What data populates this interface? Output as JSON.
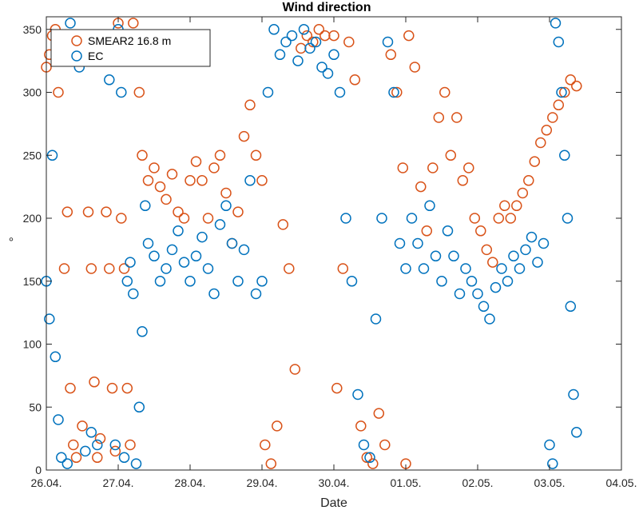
{
  "chart_data": {
    "type": "scatter",
    "title": "Wind direction",
    "xlabel": "Date",
    "ylabel": "°",
    "xlim": [
      "26.04.",
      "04.05."
    ],
    "ylim": [
      0,
      360
    ],
    "x_ticks": [
      "26.04.",
      "27.04.",
      "28.04.",
      "29.04.",
      "30.04.",
      "01.05.",
      "02.05.",
      "03.05.",
      "04.05."
    ],
    "y_ticks": [
      0,
      50,
      100,
      150,
      200,
      250,
      300,
      350
    ],
    "grid": false,
    "legend_location": "top-left",
    "marker": "open-circle",
    "series": [
      {
        "name": "SMEAR2 16.8 m",
        "color": "#D95319",
        "points": [
          [
            "26.04. 00:00",
            320
          ],
          [
            "26.04. 01:00",
            330
          ],
          [
            "26.04. 02:00",
            345
          ],
          [
            "26.04. 03:00",
            350
          ],
          [
            "26.04. 04:00",
            300
          ],
          [
            "26.04. 06:00",
            160
          ],
          [
            "26.04. 07:00",
            205
          ],
          [
            "26.04. 08:00",
            65
          ],
          [
            "26.04. 09:00",
            20
          ],
          [
            "26.04. 10:00",
            10
          ],
          [
            "26.04. 12:00",
            35
          ],
          [
            "26.04. 14:00",
            205
          ],
          [
            "26.04. 15:00",
            160
          ],
          [
            "26.04. 16:00",
            70
          ],
          [
            "26.04. 17:00",
            10
          ],
          [
            "26.04. 18:00",
            25
          ],
          [
            "26.04. 20:00",
            205
          ],
          [
            "26.04. 21:00",
            160
          ],
          [
            "26.04. 22:00",
            65
          ],
          [
            "26.04. 23:00",
            15
          ],
          [
            "27.04. 00:00",
            355
          ],
          [
            "27.04. 01:00",
            200
          ],
          [
            "27.04. 02:00",
            160
          ],
          [
            "27.04. 03:00",
            65
          ],
          [
            "27.04. 04:00",
            20
          ],
          [
            "27.04. 05:00",
            355
          ],
          [
            "27.04. 06:00",
            340
          ],
          [
            "27.04. 07:00",
            300
          ],
          [
            "27.04. 08:00",
            250
          ],
          [
            "27.04. 10:00",
            230
          ],
          [
            "27.04. 12:00",
            240
          ],
          [
            "27.04. 14:00",
            225
          ],
          [
            "27.04. 16:00",
            215
          ],
          [
            "27.04. 18:00",
            235
          ],
          [
            "27.04. 20:00",
            205
          ],
          [
            "27.04. 22:00",
            200
          ],
          [
            "28.04. 00:00",
            230
          ],
          [
            "28.04. 02:00",
            245
          ],
          [
            "28.04. 04:00",
            230
          ],
          [
            "28.04. 06:00",
            200
          ],
          [
            "28.04. 08:00",
            240
          ],
          [
            "28.04. 10:00",
            250
          ],
          [
            "28.04. 12:00",
            220
          ],
          [
            "28.04. 14:00",
            180
          ],
          [
            "28.04. 16:00",
            205
          ],
          [
            "28.04. 18:00",
            265
          ],
          [
            "28.04. 20:00",
            290
          ],
          [
            "28.04. 22:00",
            250
          ],
          [
            "29.04. 00:00",
            230
          ],
          [
            "29.04. 01:00",
            20
          ],
          [
            "29.04. 03:00",
            5
          ],
          [
            "29.04. 05:00",
            35
          ],
          [
            "29.04. 07:00",
            195
          ],
          [
            "29.04. 09:00",
            160
          ],
          [
            "29.04. 11:00",
            80
          ],
          [
            "29.04. 13:00",
            335
          ],
          [
            "29.04. 15:00",
            345
          ],
          [
            "29.04. 17:00",
            340
          ],
          [
            "29.04. 19:00",
            350
          ],
          [
            "29.04. 21:00",
            345
          ],
          [
            "30.04. 00:00",
            345
          ],
          [
            "30.04. 01:00",
            65
          ],
          [
            "30.04. 03:00",
            160
          ],
          [
            "30.04. 05:00",
            340
          ],
          [
            "30.04. 07:00",
            310
          ],
          [
            "30.04. 09:00",
            35
          ],
          [
            "30.04. 11:00",
            10
          ],
          [
            "30.04. 13:00",
            5
          ],
          [
            "30.04. 15:00",
            45
          ],
          [
            "30.04. 17:00",
            20
          ],
          [
            "30.04. 19:00",
            330
          ],
          [
            "30.04. 21:00",
            300
          ],
          [
            "30.04. 23:00",
            240
          ],
          [
            "01.05. 00:00",
            5
          ],
          [
            "01.05. 01:00",
            345
          ],
          [
            "01.05. 03:00",
            320
          ],
          [
            "01.05. 05:00",
            225
          ],
          [
            "01.05. 07:00",
            190
          ],
          [
            "01.05. 09:00",
            240
          ],
          [
            "01.05. 11:00",
            280
          ],
          [
            "01.05. 13:00",
            300
          ],
          [
            "01.05. 15:00",
            250
          ],
          [
            "01.05. 17:00",
            280
          ],
          [
            "01.05. 19:00",
            230
          ],
          [
            "01.05. 21:00",
            240
          ],
          [
            "01.05. 23:00",
            200
          ],
          [
            "02.05. 01:00",
            190
          ],
          [
            "02.05. 03:00",
            175
          ],
          [
            "02.05. 05:00",
            165
          ],
          [
            "02.05. 07:00",
            200
          ],
          [
            "02.05. 09:00",
            210
          ],
          [
            "02.05. 11:00",
            200
          ],
          [
            "02.05. 13:00",
            210
          ],
          [
            "02.05. 15:00",
            220
          ],
          [
            "02.05. 17:00",
            230
          ],
          [
            "02.05. 19:00",
            245
          ],
          [
            "02.05. 21:00",
            260
          ],
          [
            "02.05. 23:00",
            270
          ],
          [
            "03.05. 01:00",
            280
          ],
          [
            "03.05. 03:00",
            290
          ],
          [
            "03.05. 05:00",
            300
          ],
          [
            "03.05. 07:00",
            310
          ],
          [
            "03.05. 09:00",
            305
          ]
        ]
      },
      {
        "name": "EC",
        "color": "#0072BD",
        "points": [
          [
            "26.04. 00:00",
            150
          ],
          [
            "26.04. 01:00",
            120
          ],
          [
            "26.04. 02:00",
            250
          ],
          [
            "26.04. 03:00",
            90
          ],
          [
            "26.04. 04:00",
            40
          ],
          [
            "26.04. 05:00",
            10
          ],
          [
            "26.04. 07:00",
            5
          ],
          [
            "26.04. 08:00",
            355
          ],
          [
            "26.04. 09:00",
            340
          ],
          [
            "26.04. 11:00",
            320
          ],
          [
            "26.04. 13:00",
            15
          ],
          [
            "26.04. 15:00",
            30
          ],
          [
            "26.04. 17:00",
            20
          ],
          [
            "26.04. 19:00",
            330
          ],
          [
            "26.04. 21:00",
            310
          ],
          [
            "26.04. 23:00",
            20
          ],
          [
            "27.04. 00:00",
            350
          ],
          [
            "27.04. 01:00",
            300
          ],
          [
            "27.04. 02:00",
            10
          ],
          [
            "27.04. 03:00",
            150
          ],
          [
            "27.04. 04:00",
            165
          ],
          [
            "27.04. 05:00",
            140
          ],
          [
            "27.04. 06:00",
            5
          ],
          [
            "27.04. 07:00",
            50
          ],
          [
            "27.04. 08:00",
            110
          ],
          [
            "27.04. 09:00",
            210
          ],
          [
            "27.04. 10:00",
            180
          ],
          [
            "27.04. 12:00",
            170
          ],
          [
            "27.04. 14:00",
            150
          ],
          [
            "27.04. 16:00",
            160
          ],
          [
            "27.04. 18:00",
            175
          ],
          [
            "27.04. 20:00",
            190
          ],
          [
            "27.04. 22:00",
            165
          ],
          [
            "28.04. 00:00",
            150
          ],
          [
            "28.04. 02:00",
            170
          ],
          [
            "28.04. 04:00",
            185
          ],
          [
            "28.04. 06:00",
            160
          ],
          [
            "28.04. 08:00",
            140
          ],
          [
            "28.04. 10:00",
            195
          ],
          [
            "28.04. 12:00",
            210
          ],
          [
            "28.04. 14:00",
            180
          ],
          [
            "28.04. 16:00",
            150
          ],
          [
            "28.04. 18:00",
            175
          ],
          [
            "28.04. 20:00",
            230
          ],
          [
            "28.04. 22:00",
            140
          ],
          [
            "29.04. 00:00",
            150
          ],
          [
            "29.04. 02:00",
            300
          ],
          [
            "29.04. 04:00",
            350
          ],
          [
            "29.04. 06:00",
            330
          ],
          [
            "29.04. 08:00",
            340
          ],
          [
            "29.04. 10:00",
            345
          ],
          [
            "29.04. 12:00",
            325
          ],
          [
            "29.04. 14:00",
            350
          ],
          [
            "29.04. 16:00",
            335
          ],
          [
            "29.04. 18:00",
            340
          ],
          [
            "29.04. 20:00",
            320
          ],
          [
            "29.04. 22:00",
            315
          ],
          [
            "30.04. 00:00",
            330
          ],
          [
            "30.04. 02:00",
            300
          ],
          [
            "30.04. 04:00",
            200
          ],
          [
            "30.04. 06:00",
            150
          ],
          [
            "30.04. 08:00",
            60
          ],
          [
            "30.04. 10:00",
            20
          ],
          [
            "30.04. 12:00",
            10
          ],
          [
            "30.04. 14:00",
            120
          ],
          [
            "30.04. 16:00",
            200
          ],
          [
            "30.04. 18:00",
            340
          ],
          [
            "30.04. 20:00",
            300
          ],
          [
            "30.04. 22:00",
            180
          ],
          [
            "01.05. 00:00",
            160
          ],
          [
            "01.05. 02:00",
            200
          ],
          [
            "01.05. 04:00",
            180
          ],
          [
            "01.05. 06:00",
            160
          ],
          [
            "01.05. 08:00",
            210
          ],
          [
            "01.05. 10:00",
            170
          ],
          [
            "01.05. 12:00",
            150
          ],
          [
            "01.05. 14:00",
            190
          ],
          [
            "01.05. 16:00",
            170
          ],
          [
            "01.05. 18:00",
            140
          ],
          [
            "01.05. 20:00",
            160
          ],
          [
            "01.05. 22:00",
            150
          ],
          [
            "02.05. 00:00",
            140
          ],
          [
            "02.05. 02:00",
            130
          ],
          [
            "02.05. 04:00",
            120
          ],
          [
            "02.05. 06:00",
            145
          ],
          [
            "02.05. 08:00",
            160
          ],
          [
            "02.05. 10:00",
            150
          ],
          [
            "02.05. 12:00",
            170
          ],
          [
            "02.05. 14:00",
            160
          ],
          [
            "02.05. 16:00",
            175
          ],
          [
            "02.05. 18:00",
            185
          ],
          [
            "02.05. 20:00",
            165
          ],
          [
            "02.05. 22:00",
            180
          ],
          [
            "03.05. 00:00",
            20
          ],
          [
            "03.05. 01:00",
            5
          ],
          [
            "03.05. 02:00",
            355
          ],
          [
            "03.05. 03:00",
            340
          ],
          [
            "03.05. 04:00",
            300
          ],
          [
            "03.05. 05:00",
            250
          ],
          [
            "03.05. 06:00",
            200
          ],
          [
            "03.05. 07:00",
            130
          ],
          [
            "03.05. 08:00",
            60
          ],
          [
            "03.05. 09:00",
            30
          ]
        ]
      }
    ]
  }
}
